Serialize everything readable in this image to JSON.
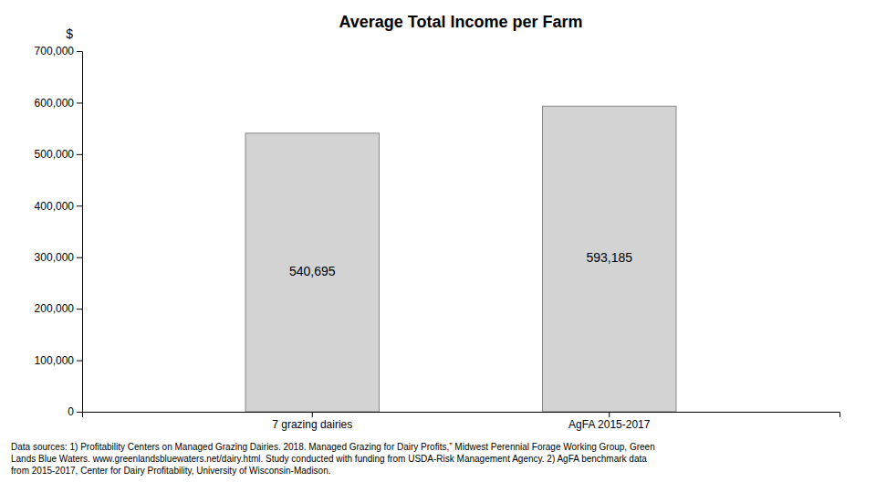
{
  "chart_data": {
    "type": "bar",
    "title": "Average Total Income per Farm",
    "ylabel": "$",
    "categories": [
      "7 grazing dairies",
      "AgFA 2015-2017"
    ],
    "values": [
      540695,
      593185
    ],
    "value_labels": [
      "540,695",
      "593,185"
    ],
    "data_labels": true,
    "color": "#d3d3d3",
    "ylim": [
      0,
      700000
    ],
    "yticks": [
      0,
      {
        "value": 100000,
        "label": "100,000"
      },
      {
        "value": 200000,
        "label": "200,000"
      },
      {
        "value": 300000,
        "label": "300,000"
      },
      {
        "value": 400000,
        "label": "400,000"
      },
      {
        "value": 500000,
        "label": "500,000"
      },
      {
        "value": 600000,
        "label": "600,000"
      },
      {
        "value": 700000,
        "label": "700,000"
      }
    ],
    "grid": false,
    "annotations": [
      "Data sources: 1) Profitability Centers on Managed Grazing Dairies. 2018. Managed Grazing for Dairy Profits,” Midwest Perennial Forage Working Group, Green",
      "Lands Blue Waters. www.greenlandsbluewaters.net/dairy.html. Study conducted with funding from USDA-Risk Management Agency. 2) AgFA benchmark data",
      "from 2015-2017, Center for Dairy Profitability, University of Wisconsin-Madison."
    ]
  }
}
